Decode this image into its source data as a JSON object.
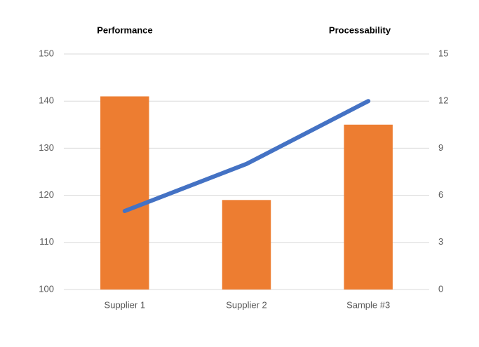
{
  "chart_data": {
    "type": "combo",
    "y_label": "Performance",
    "y2_label": "Processability",
    "categories": [
      "Supplier 1",
      "Supplier 2",
      "Sample #3"
    ],
    "series": [
      {
        "type": "bar",
        "color": "#ed7d31",
        "values": [
          141,
          119,
          135
        ]
      },
      {
        "type": "line",
        "color": "#4472c4",
        "axis": "y2",
        "values": [
          5,
          8,
          12
        ]
      }
    ],
    "ylim": [
      100,
      150
    ],
    "yticks": [
      100,
      110,
      120,
      130,
      140,
      150
    ],
    "y2lim": [
      0,
      15
    ],
    "y2ticks": [
      0,
      3,
      6,
      9,
      12,
      15
    ],
    "grid": true
  }
}
